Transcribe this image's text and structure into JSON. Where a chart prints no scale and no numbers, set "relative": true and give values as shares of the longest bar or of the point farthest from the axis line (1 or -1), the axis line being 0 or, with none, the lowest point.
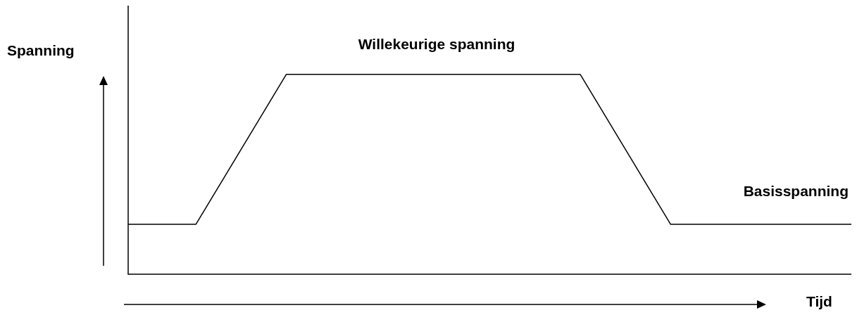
{
  "chart_data": {
    "type": "line",
    "relative": true,
    "ylabel": "Spanning",
    "xlabel": "Tijd",
    "color": "#000000",
    "marker": "none",
    "categories": [
      null,
      null,
      null,
      null,
      null,
      null,
      null,
      null,
      null,
      null,
      null,
      null,
      null,
      null,
      null,
      null,
      null,
      null,
      null,
      null,
      null,
      null,
      null,
      null,
      null,
      null,
      null,
      null,
      null,
      null,
      null,
      null,
      null
    ],
    "values": [
      0.25,
      null,
      null,
      0.25,
      null,
      null,
      null,
      1,
      null,
      null,
      null,
      null,
      null,
      null,
      null,
      null,
      null,
      null,
      null,
      null,
      1,
      null,
      null,
      null,
      0.25,
      null,
      null,
      null,
      null,
      null,
      null,
      null,
      0.25
    ],
    "annotations": [
      "Willekeurige spanning",
      "Basisspanning"
    ]
  }
}
